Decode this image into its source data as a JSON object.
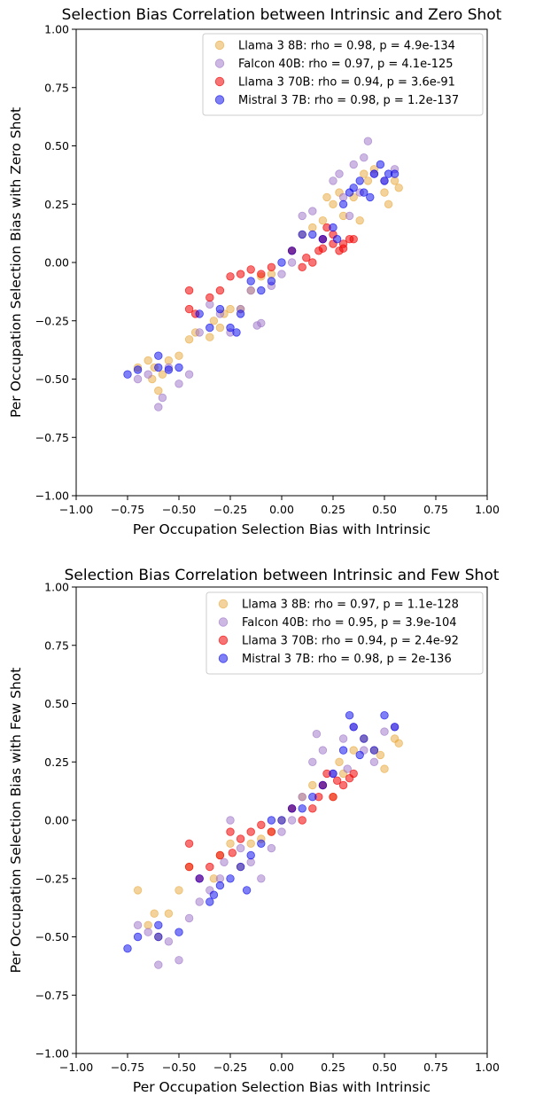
{
  "chart_data": [
    {
      "type": "scatter",
      "title": "Selection Bias Correlation between Intrinsic and Zero Shot",
      "xlabel": "Per Occupation Selection Bias with Intrinsic",
      "ylabel": "Per Occupation Selection Bias with Zero Shot",
      "xlim": [
        -1.0,
        1.0
      ],
      "ylim": [
        -1.0,
        1.0
      ],
      "xticks": [
        "−1.00",
        "−0.75",
        "−0.50",
        "−0.25",
        "0.00",
        "0.25",
        "0.50",
        "0.75",
        "1.00"
      ],
      "yticks": [
        "−1.00",
        "−0.75",
        "−0.50",
        "−0.25",
        "0.00",
        "0.25",
        "0.50",
        "0.75",
        "1.00"
      ],
      "grid": false,
      "legend": "top-right",
      "series": [
        {
          "name": "Llama 3 8B: rho = 0.98, p = 4.9e-134",
          "color": "#E8A838",
          "alpha": 0.5,
          "points": [
            [
              -0.7,
              -0.45
            ],
            [
              -0.65,
              -0.42
            ],
            [
              -0.63,
              -0.5
            ],
            [
              -0.6,
              -0.55
            ],
            [
              -0.58,
              -0.48
            ],
            [
              -0.55,
              -0.42
            ],
            [
              -0.5,
              -0.4
            ],
            [
              -0.45,
              -0.33
            ],
            [
              -0.42,
              -0.3
            ],
            [
              -0.35,
              -0.32
            ],
            [
              -0.3,
              -0.28
            ],
            [
              -0.28,
              -0.22
            ],
            [
              -0.25,
              -0.2
            ],
            [
              -0.2,
              -0.2
            ],
            [
              -0.15,
              -0.12
            ],
            [
              -0.1,
              -0.06
            ],
            [
              -0.05,
              -0.05
            ],
            [
              0.05,
              0.05
            ],
            [
              0.1,
              0.12
            ],
            [
              0.15,
              0.15
            ],
            [
              0.2,
              0.18
            ],
            [
              0.25,
              0.25
            ],
            [
              0.28,
              0.3
            ],
            [
              0.3,
              0.2
            ],
            [
              0.35,
              0.28
            ],
            [
              0.4,
              0.38
            ],
            [
              0.42,
              0.35
            ],
            [
              0.45,
              0.4
            ],
            [
              0.5,
              0.3
            ],
            [
              0.52,
              0.25
            ],
            [
              0.55,
              0.35
            ],
            [
              0.57,
              0.32
            ],
            [
              0.38,
              0.18
            ],
            [
              -0.62,
              -0.45
            ],
            [
              -0.33,
              -0.25
            ],
            [
              0.22,
              0.28
            ]
          ]
        },
        {
          "name": "Falcon 40B: rho = 0.97, p = 4.1e-125",
          "color": "#9B72C8",
          "alpha": 0.5,
          "points": [
            [
              -0.7,
              -0.5
            ],
            [
              -0.65,
              -0.48
            ],
            [
              -0.6,
              -0.62
            ],
            [
              -0.58,
              -0.58
            ],
            [
              -0.55,
              -0.45
            ],
            [
              -0.5,
              -0.52
            ],
            [
              -0.45,
              -0.48
            ],
            [
              -0.4,
              -0.3
            ],
            [
              -0.3,
              -0.22
            ],
            [
              -0.25,
              -0.3
            ],
            [
              -0.2,
              -0.2
            ],
            [
              -0.15,
              -0.12
            ],
            [
              -0.1,
              -0.26
            ],
            [
              -0.05,
              -0.1
            ],
            [
              0.0,
              -0.05
            ],
            [
              0.05,
              0.0
            ],
            [
              0.1,
              0.2
            ],
            [
              0.15,
              0.22
            ],
            [
              0.2,
              0.1
            ],
            [
              0.25,
              0.35
            ],
            [
              0.3,
              0.28
            ],
            [
              0.35,
              0.42
            ],
            [
              0.4,
              0.45
            ],
            [
              0.42,
              0.52
            ],
            [
              0.45,
              0.38
            ],
            [
              0.5,
              0.35
            ],
            [
              0.55,
              0.4
            ],
            [
              -0.35,
              -0.18
            ],
            [
              0.28,
              0.38
            ],
            [
              0.33,
              0.2
            ],
            [
              -0.12,
              -0.27
            ],
            [
              0.38,
              0.3
            ]
          ]
        },
        {
          "name": "Llama 3 70B: rho = 0.94, p = 3.6e-91",
          "color": "#F20000",
          "alpha": 0.55,
          "points": [
            [
              -0.45,
              -0.12
            ],
            [
              -0.45,
              -0.2
            ],
            [
              -0.42,
              -0.22
            ],
            [
              -0.35,
              -0.15
            ],
            [
              -0.3,
              -0.12
            ],
            [
              -0.25,
              -0.06
            ],
            [
              -0.2,
              -0.05
            ],
            [
              -0.15,
              -0.03
            ],
            [
              -0.1,
              -0.05
            ],
            [
              -0.05,
              -0.02
            ],
            [
              0.05,
              0.05
            ],
            [
              0.1,
              -0.02
            ],
            [
              0.12,
              0.02
            ],
            [
              0.15,
              0.0
            ],
            [
              0.18,
              0.05
            ],
            [
              0.2,
              0.1
            ],
            [
              0.22,
              0.15
            ],
            [
              0.25,
              0.12
            ],
            [
              0.28,
              0.05
            ],
            [
              0.3,
              0.08
            ],
            [
              0.33,
              0.1
            ],
            [
              0.35,
              0.1
            ],
            [
              0.2,
              0.06
            ],
            [
              0.25,
              0.08
            ],
            [
              0.3,
              0.06
            ]
          ]
        },
        {
          "name": "Mistral 3 7B: rho = 0.98, p = 1.2e-137",
          "color": "#0000EE",
          "alpha": 0.5,
          "points": [
            [
              -0.75,
              -0.48
            ],
            [
              -0.7,
              -0.46
            ],
            [
              -0.6,
              -0.4
            ],
            [
              -0.6,
              -0.45
            ],
            [
              -0.55,
              -0.46
            ],
            [
              -0.5,
              -0.45
            ],
            [
              -0.4,
              -0.22
            ],
            [
              -0.35,
              -0.28
            ],
            [
              -0.3,
              -0.2
            ],
            [
              -0.25,
              -0.28
            ],
            [
              -0.2,
              -0.22
            ],
            [
              -0.15,
              -0.08
            ],
            [
              -0.1,
              -0.12
            ],
            [
              -0.05,
              -0.08
            ],
            [
              0.0,
              0.0
            ],
            [
              0.05,
              0.05
            ],
            [
              0.1,
              0.12
            ],
            [
              0.15,
              0.12
            ],
            [
              0.2,
              0.1
            ],
            [
              0.25,
              0.15
            ],
            [
              0.3,
              0.25
            ],
            [
              0.33,
              0.3
            ],
            [
              0.35,
              0.32
            ],
            [
              0.38,
              0.35
            ],
            [
              0.4,
              0.3
            ],
            [
              0.45,
              0.38
            ],
            [
              0.48,
              0.42
            ],
            [
              0.5,
              0.35
            ],
            [
              0.52,
              0.38
            ],
            [
              0.55,
              0.38
            ],
            [
              -0.22,
              -0.3
            ],
            [
              0.27,
              0.1
            ],
            [
              0.43,
              0.28
            ]
          ]
        }
      ]
    },
    {
      "type": "scatter",
      "title": "Selection Bias Correlation between Intrinsic and Few Shot",
      "xlabel": "Per Occupation Selection Bias with Intrinsic",
      "ylabel": "Per Occupation Selection Bias with Few Shot",
      "xlim": [
        -1.0,
        1.0
      ],
      "ylim": [
        -1.0,
        1.0
      ],
      "xticks": [
        "−1.00",
        "−0.75",
        "−0.50",
        "−0.25",
        "0.00",
        "0.25",
        "0.50",
        "0.75",
        "1.00"
      ],
      "yticks": [
        "−1.00",
        "−0.75",
        "−0.50",
        "−0.25",
        "0.00",
        "0.25",
        "0.50",
        "0.75",
        "1.00"
      ],
      "grid": false,
      "legend": "top-right",
      "series": [
        {
          "name": "Llama 3 8B: rho = 0.97, p = 1.1e-128",
          "color": "#E8A838",
          "alpha": 0.5,
          "points": [
            [
              -0.7,
              -0.3
            ],
            [
              -0.65,
              -0.45
            ],
            [
              -0.6,
              -0.5
            ],
            [
              -0.55,
              -0.4
            ],
            [
              -0.5,
              -0.3
            ],
            [
              -0.45,
              -0.2
            ],
            [
              -0.3,
              -0.15
            ],
            [
              -0.25,
              -0.1
            ],
            [
              -0.2,
              -0.2
            ],
            [
              -0.15,
              -0.1
            ],
            [
              -0.1,
              -0.08
            ],
            [
              -0.05,
              -0.05
            ],
            [
              0.0,
              0.0
            ],
            [
              0.05,
              0.05
            ],
            [
              0.1,
              0.1
            ],
            [
              0.15,
              0.15
            ],
            [
              0.2,
              0.15
            ],
            [
              0.25,
              0.1
            ],
            [
              0.3,
              0.2
            ],
            [
              0.35,
              0.3
            ],
            [
              0.4,
              0.35
            ],
            [
              0.45,
              0.3
            ],
            [
              0.5,
              0.22
            ],
            [
              0.55,
              0.35
            ],
            [
              0.57,
              0.33
            ],
            [
              -0.62,
              -0.4
            ],
            [
              -0.33,
              -0.25
            ],
            [
              0.28,
              0.25
            ],
            [
              0.48,
              0.28
            ]
          ]
        },
        {
          "name": "Falcon 40B: rho = 0.95, p = 3.9e-104",
          "color": "#9B72C8",
          "alpha": 0.5,
          "points": [
            [
              -0.7,
              -0.45
            ],
            [
              -0.65,
              -0.48
            ],
            [
              -0.6,
              -0.62
            ],
            [
              -0.55,
              -0.52
            ],
            [
              -0.5,
              -0.6
            ],
            [
              -0.45,
              -0.42
            ],
            [
              -0.4,
              -0.35
            ],
            [
              -0.35,
              -0.3
            ],
            [
              -0.3,
              -0.25
            ],
            [
              -0.25,
              0.0
            ],
            [
              -0.2,
              -0.12
            ],
            [
              -0.15,
              -0.18
            ],
            [
              -0.1,
              -0.25
            ],
            [
              -0.05,
              -0.12
            ],
            [
              0.0,
              -0.05
            ],
            [
              0.05,
              0.0
            ],
            [
              0.1,
              0.1
            ],
            [
              0.15,
              0.25
            ],
            [
              0.2,
              0.3
            ],
            [
              0.25,
              0.2
            ],
            [
              0.3,
              0.35
            ],
            [
              0.35,
              0.4
            ],
            [
              0.4,
              0.3
            ],
            [
              0.45,
              0.25
            ],
            [
              0.5,
              0.38
            ],
            [
              0.55,
              0.4
            ],
            [
              0.17,
              0.37
            ],
            [
              -0.28,
              -0.18
            ],
            [
              0.32,
              0.22
            ]
          ]
        },
        {
          "name": "Llama 3 70B: rho = 0.94, p = 2.4e-92",
          "color": "#F20000",
          "alpha": 0.55,
          "points": [
            [
              -0.45,
              -0.1
            ],
            [
              -0.45,
              -0.2
            ],
            [
              -0.4,
              -0.25
            ],
            [
              -0.35,
              -0.2
            ],
            [
              -0.3,
              -0.15
            ],
            [
              -0.25,
              -0.05
            ],
            [
              -0.2,
              -0.08
            ],
            [
              -0.15,
              -0.05
            ],
            [
              -0.1,
              -0.02
            ],
            [
              -0.05,
              -0.05
            ],
            [
              0.05,
              0.05
            ],
            [
              0.1,
              0.0
            ],
            [
              0.15,
              0.05
            ],
            [
              0.18,
              0.1
            ],
            [
              0.2,
              0.15
            ],
            [
              0.22,
              0.2
            ],
            [
              0.25,
              0.1
            ],
            [
              0.3,
              0.15
            ],
            [
              0.33,
              0.18
            ],
            [
              0.35,
              0.2
            ],
            [
              -0.24,
              -0.14
            ],
            [
              0.27,
              0.17
            ]
          ]
        },
        {
          "name": "Mistral 3 7B: rho = 0.98, p = 2e-136",
          "color": "#0000EE",
          "alpha": 0.5,
          "points": [
            [
              -0.75,
              -0.55
            ],
            [
              -0.7,
              -0.5
            ],
            [
              -0.6,
              -0.45
            ],
            [
              -0.6,
              -0.5
            ],
            [
              -0.5,
              -0.48
            ],
            [
              -0.4,
              -0.25
            ],
            [
              -0.35,
              -0.35
            ],
            [
              -0.3,
              -0.28
            ],
            [
              -0.25,
              -0.25
            ],
            [
              -0.2,
              -0.2
            ],
            [
              -0.15,
              -0.15
            ],
            [
              -0.1,
              -0.1
            ],
            [
              -0.05,
              0.0
            ],
            [
              0.0,
              0.0
            ],
            [
              0.05,
              0.05
            ],
            [
              0.1,
              0.05
            ],
            [
              0.15,
              0.1
            ],
            [
              0.2,
              0.15
            ],
            [
              0.25,
              0.2
            ],
            [
              0.3,
              0.3
            ],
            [
              0.33,
              0.45
            ],
            [
              0.35,
              0.4
            ],
            [
              0.4,
              0.35
            ],
            [
              0.45,
              0.3
            ],
            [
              0.5,
              0.45
            ],
            [
              0.55,
              0.4
            ],
            [
              -0.33,
              -0.32
            ],
            [
              0.38,
              0.28
            ],
            [
              -0.17,
              -0.3
            ]
          ]
        }
      ]
    }
  ]
}
